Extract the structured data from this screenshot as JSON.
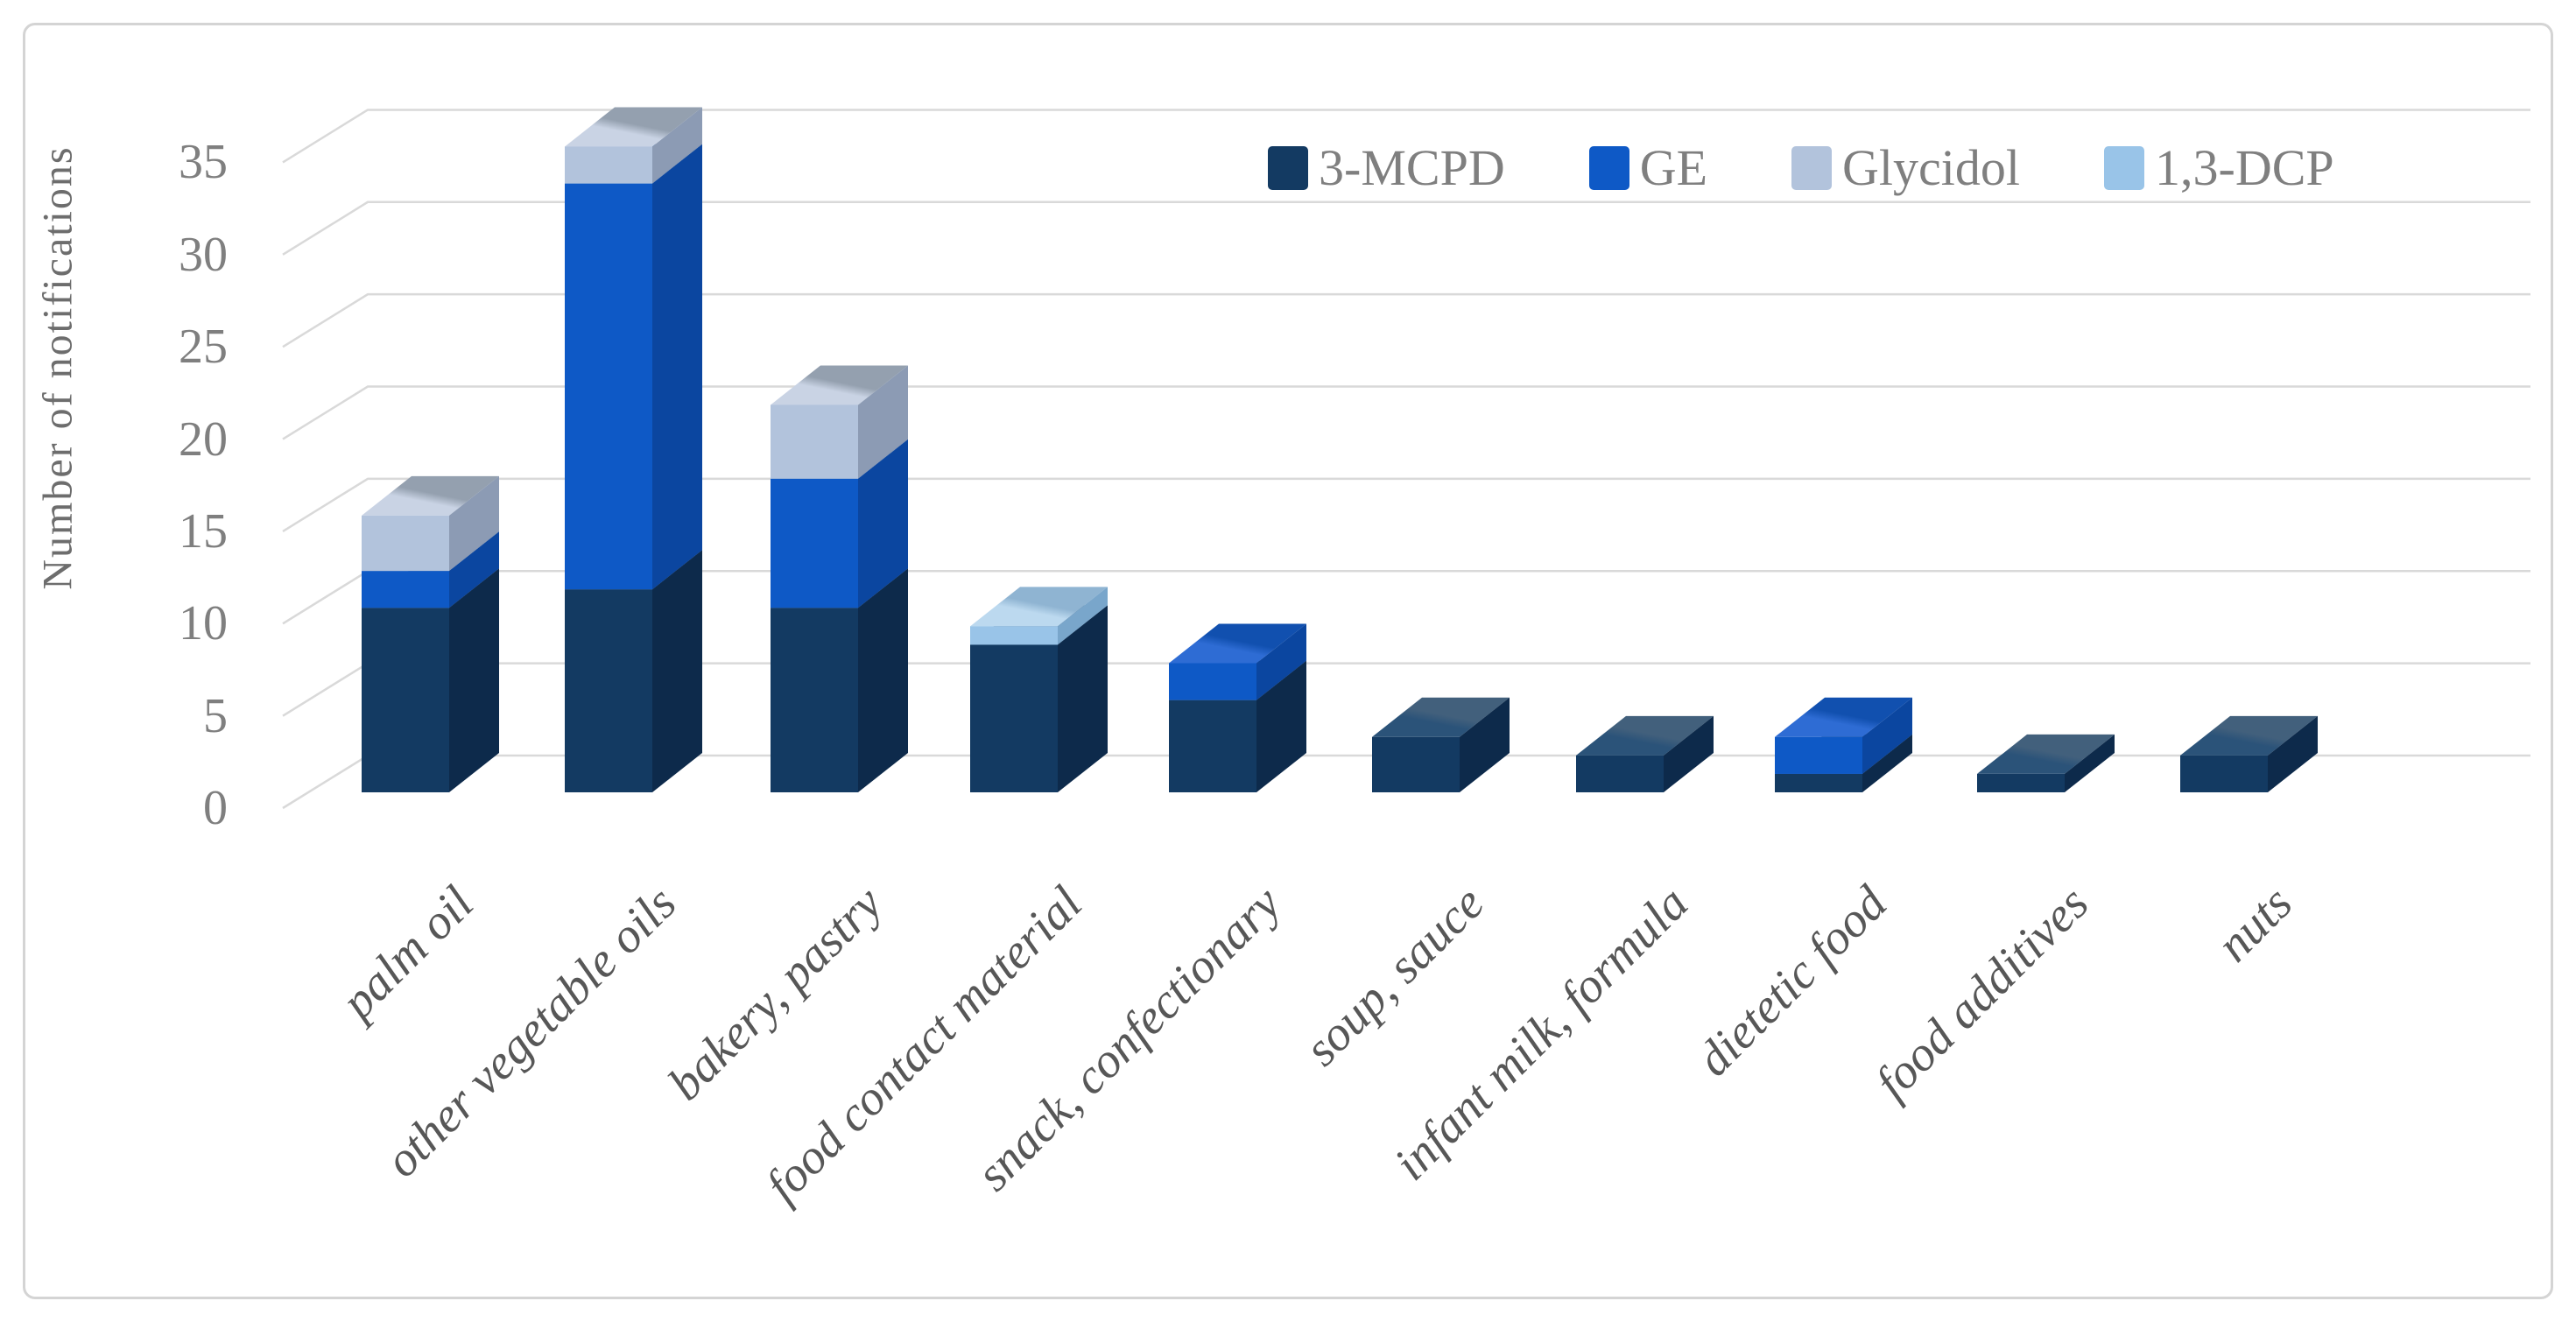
{
  "figure": {
    "background": "#ffffff",
    "border_color": "#d4d4d4",
    "grid_color": "#d9d9d9",
    "tick_text_color": "#7f7f7f",
    "legend_text_color": "#7f7f7f",
    "category_text_color": "#575757",
    "axis_title_color": "#6d6d6d"
  },
  "chart_data": {
    "type": "bar",
    "variant": "3d-stacked-column",
    "title": "",
    "xlabel": "",
    "ylabel": "Number of notifications",
    "ylim": [
      0,
      35
    ],
    "yticks": [
      0,
      5,
      10,
      15,
      20,
      25,
      30,
      35
    ],
    "grid": true,
    "legend_position": "top-right",
    "categories": [
      "palm oil",
      "other vegetable oils",
      "bakery, pastry",
      "food contact material",
      "snack, confectionary",
      "soup, sauce",
      "infant milk, formula",
      "dietetic food",
      "food additives",
      "nuts"
    ],
    "series": [
      {
        "name": "3-MCPD",
        "color": "#133a62",
        "color_side": "#0d2a4b",
        "color_top": [
          "#2b5379",
          "#42607c"
        ],
        "values": [
          10,
          11,
          10,
          8,
          5,
          3,
          2,
          1,
          1,
          2
        ]
      },
      {
        "name": "GE",
        "color": "#0e59c6",
        "color_side": "#0b46a0",
        "color_top": [
          "#2e6cd4",
          "#1150af"
        ],
        "values": [
          2,
          22,
          7,
          0,
          2,
          0,
          0,
          2,
          0,
          0
        ]
      },
      {
        "name": "Glycidol",
        "color": "#b2c3dc",
        "color_side": "#8c9bb4",
        "color_top": [
          "#c9d3e4",
          "#94a0af"
        ],
        "values": [
          3,
          2,
          4,
          0,
          0,
          0,
          0,
          0,
          0,
          0
        ]
      },
      {
        "name": "1,3-DCP",
        "color": "#99c4e8",
        "color_side": "#79a6cb",
        "color_top": [
          "#bcd9ef",
          "#8fb4d2"
        ],
        "values": [
          0,
          0,
          0,
          1,
          0,
          0,
          0,
          0,
          0,
          0
        ]
      }
    ],
    "totals": [
      15,
      35,
      21,
      9,
      7,
      3,
      2,
      3,
      1,
      2
    ]
  }
}
